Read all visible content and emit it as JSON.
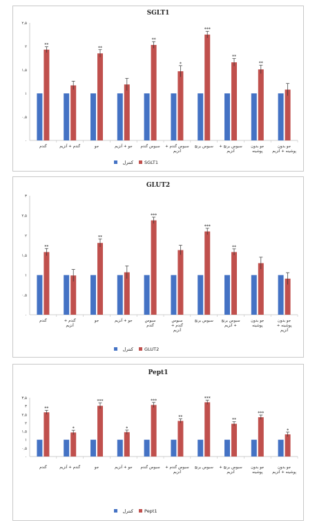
{
  "colors": {
    "control": "#4472C4",
    "treatment": "#C0504D",
    "axis": "#bfbfbf",
    "errorbar": "#333333"
  },
  "chart_data": [
    {
      "type": "bar",
      "title": "SGLT1",
      "ylim": [
        0,
        2.5
      ],
      "yticks": [
        "۰",
        "۰,۵",
        "۱",
        "۱,۵",
        "۲",
        "۲,۵"
      ],
      "categories": [
        [
          "گندم"
        ],
        [
          "گندم + آنزیم"
        ],
        [
          "جو"
        ],
        [
          "جو + آنزیم"
        ],
        [
          "سبوس گندم"
        ],
        [
          "سبوس گندم +",
          "آنزیم"
        ],
        [
          "سبوس برنج"
        ],
        [
          "سبوس برنج +",
          "آنزیم"
        ],
        [
          "جو بدون",
          "پوشینه"
        ],
        [
          "جو بدون",
          "پوشینه + آنزیم"
        ]
      ],
      "series": [
        {
          "name": "کنترل",
          "values": [
            1,
            1,
            1,
            1,
            1,
            1,
            1,
            1,
            1,
            1
          ],
          "errors": [
            0,
            0,
            0,
            0,
            0,
            0,
            0,
            0,
            0,
            0
          ]
        },
        {
          "name": "SGLT1",
          "values": [
            1.93,
            1.17,
            1.85,
            1.19,
            2.03,
            1.47,
            2.25,
            1.66,
            1.51,
            1.08
          ],
          "errors": [
            0.06,
            0.09,
            0.08,
            0.13,
            0.07,
            0.12,
            0.07,
            0.08,
            0.09,
            0.13
          ]
        }
      ],
      "significance": [
        "**",
        "",
        "**",
        "",
        "**",
        "*",
        "***",
        "**",
        "**",
        ""
      ]
    },
    {
      "type": "bar",
      "title": "GLUT2",
      "ylim": [
        0,
        3
      ],
      "yticks": [
        "۰",
        "۰,۵",
        "۱",
        "۱,۵",
        "۲",
        "۲,۵",
        "۳"
      ],
      "categories": [
        [
          "گندم"
        ],
        [
          "گندم +",
          "آنزیم"
        ],
        [
          "جو"
        ],
        [
          "جو + آنزیم"
        ],
        [
          "سبوس",
          "گندم"
        ],
        [
          "سبوس",
          "گندم +",
          "آنزیم"
        ],
        [
          "سبوس برنج"
        ],
        [
          "سبوس برنج",
          "+ آنزیم"
        ],
        [
          "جو بدون",
          "پوشینه"
        ],
        [
          "جو بدون",
          "پوشینه +",
          "آنزیم"
        ]
      ],
      "series": [
        {
          "name": "کنترل",
          "values": [
            1,
            1,
            1,
            1,
            1,
            1,
            1,
            1,
            1,
            1
          ],
          "errors": [
            0,
            0,
            0,
            0,
            0,
            0,
            0,
            0,
            0,
            0
          ]
        },
        {
          "name": "GLUT2",
          "values": [
            1.58,
            0.99,
            1.81,
            1.07,
            2.38,
            1.63,
            2.1,
            1.58,
            1.3,
            0.91
          ],
          "errors": [
            0.09,
            0.15,
            0.1,
            0.16,
            0.08,
            0.12,
            0.08,
            0.08,
            0.15,
            0.15
          ]
        }
      ],
      "significance": [
        "**",
        "",
        "**",
        "",
        "***",
        "",
        "***",
        "**",
        "",
        ""
      ]
    },
    {
      "type": "bar",
      "title": "Pept1",
      "ylim": [
        0,
        3.5
      ],
      "yticks": [
        "۰",
        "۰,۵",
        "۱",
        "۱,۵",
        "۲",
        "۲,۵",
        "۳",
        "۳,۵"
      ],
      "categories": [
        [
          "گندم"
        ],
        [
          "گندم + آنزیم"
        ],
        [
          "جو"
        ],
        [
          "جو + آنزیم"
        ],
        [
          "سبوس گندم"
        ],
        [
          "سبوس گندم +",
          "آنزیم"
        ],
        [
          "سبوس برنج"
        ],
        [
          "سبوس برنج +",
          "آنزیم"
        ],
        [
          "جو بدون",
          "پوشینه"
        ],
        [
          "جو بدون",
          "پوشینه + آنزیم"
        ]
      ],
      "series": [
        {
          "name": "کنترل",
          "values": [
            1,
            1,
            1,
            1,
            1,
            1,
            1,
            1,
            1,
            1
          ],
          "errors": [
            0,
            0,
            0,
            0,
            0,
            0,
            0,
            0,
            0,
            0
          ]
        },
        {
          "name": "Pept1",
          "values": [
            2.63,
            1.43,
            3.02,
            1.45,
            3.07,
            2.12,
            3.23,
            1.95,
            2.34,
            1.32
          ],
          "errors": [
            0.12,
            0.13,
            0.17,
            0.12,
            0.15,
            0.12,
            0.12,
            0.12,
            0.13,
            0.13
          ]
        }
      ],
      "significance": [
        "**",
        "*",
        "***",
        "*",
        "***",
        "**",
        "***",
        "**",
        "***",
        "*"
      ]
    }
  ]
}
